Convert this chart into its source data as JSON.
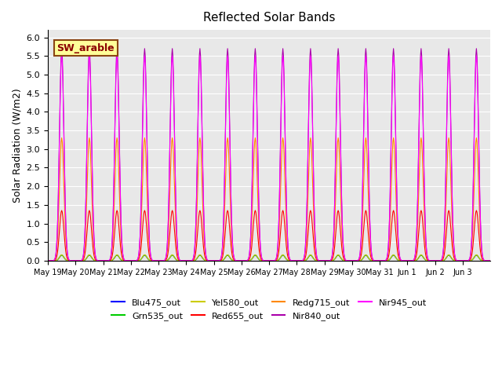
{
  "title": "Reflected Solar Bands",
  "ylabel": "Solar Radiation (W/m2)",
  "ylim": [
    0,
    6.2
  ],
  "yticks": [
    0.0,
    0.5,
    1.0,
    1.5,
    2.0,
    2.5,
    3.0,
    3.5,
    4.0,
    4.5,
    5.0,
    5.5,
    6.0
  ],
  "background_color": "#e8e8e8",
  "annotation_text": "SW_arable",
  "annotation_bg": "#ffff99",
  "annotation_border": "#8B4513",
  "annotation_text_color": "#8B0000",
  "series": [
    {
      "label": "Blu475_out",
      "color": "#0000ff",
      "peak": 0.15
    },
    {
      "label": "Grn535_out",
      "color": "#00cc00",
      "peak": 0.15
    },
    {
      "label": "Yel580_out",
      "color": "#cccc00",
      "peak": 0.16
    },
    {
      "label": "Red655_out",
      "color": "#ff0000",
      "peak": 1.35
    },
    {
      "label": "Redg715_out",
      "color": "#ff8800",
      "peak": 3.3
    },
    {
      "label": "Nir840_out",
      "color": "#aa00aa",
      "peak": 5.7
    },
    {
      "label": "Nir945_out",
      "color": "#ff00ff",
      "peak": 5.5
    }
  ],
  "n_days": 16,
  "points_per_day": 48,
  "tick_labels": [
    "May 19",
    "May 20",
    "May 21",
    "May 22",
    "May 23",
    "May 24",
    "May 25",
    "May 26",
    "May 27",
    "May 28",
    "May 29",
    "May 30",
    "May 31",
    "Jun 1",
    "Jun 2",
    "Jun 3"
  ]
}
